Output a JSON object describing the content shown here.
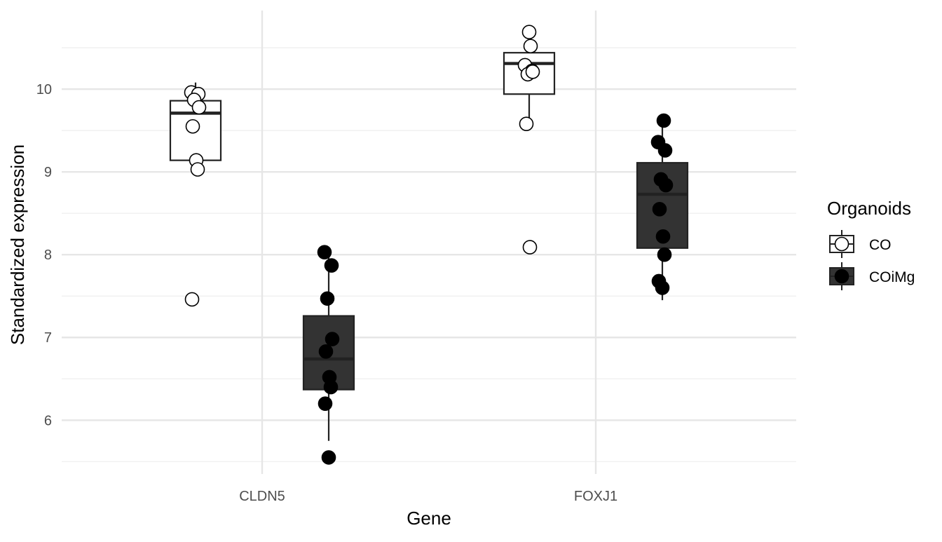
{
  "chart_data": {
    "type": "box",
    "xlabel": "Gene",
    "ylabel": "Standardized expression",
    "categories": [
      "CLDN5",
      "FOXJ1"
    ],
    "ylim": [
      5.35,
      10.95
    ],
    "yticks": [
      6,
      7,
      8,
      9,
      10
    ],
    "grid": true,
    "legend": {
      "title": "Organoids",
      "position": "right",
      "entries": [
        "CO",
        "COiMg"
      ]
    },
    "series": [
      {
        "name": "CO",
        "fill": "#ffffff",
        "stroke": "#333333",
        "point_fill": "#ffffff",
        "boxes": [
          {
            "category": "CLDN5",
            "q1": 9.14,
            "median": 9.71,
            "q3": 9.86,
            "whisker_low": 9.03,
            "whisker_high": 10.08
          },
          {
            "category": "FOXJ1",
            "q1": 9.94,
            "median": 10.31,
            "q3": 10.44,
            "whisker_low": 9.58,
            "whisker_high": 10.44
          }
        ],
        "points": [
          {
            "category": "CLDN5",
            "y": 9.96
          },
          {
            "category": "CLDN5",
            "y": 9.94
          },
          {
            "category": "CLDN5",
            "y": 9.87
          },
          {
            "category": "CLDN5",
            "y": 9.78
          },
          {
            "category": "CLDN5",
            "y": 9.55
          },
          {
            "category": "CLDN5",
            "y": 9.14
          },
          {
            "category": "CLDN5",
            "y": 9.03
          },
          {
            "category": "CLDN5",
            "y": 7.46
          },
          {
            "category": "FOXJ1",
            "y": 10.69
          },
          {
            "category": "FOXJ1",
            "y": 10.52
          },
          {
            "category": "FOXJ1",
            "y": 10.29
          },
          {
            "category": "FOXJ1",
            "y": 10.22
          },
          {
            "category": "FOXJ1",
            "y": 10.18
          },
          {
            "category": "FOXJ1",
            "y": 10.21
          },
          {
            "category": "FOXJ1",
            "y": 9.58
          },
          {
            "category": "FOXJ1",
            "y": 8.09
          }
        ]
      },
      {
        "name": "COiMg",
        "fill": "#333333",
        "stroke": "#222222",
        "point_fill": "#000000",
        "boxes": [
          {
            "category": "CLDN5",
            "q1": 6.37,
            "median": 6.74,
            "q3": 7.26,
            "whisker_low": 5.75,
            "whisker_high": 8.03
          },
          {
            "category": "FOXJ1",
            "q1": 8.08,
            "median": 8.73,
            "q3": 9.11,
            "whisker_low": 7.45,
            "whisker_high": 9.62
          }
        ],
        "points": [
          {
            "category": "CLDN5",
            "y": 8.03
          },
          {
            "category": "CLDN5",
            "y": 7.87
          },
          {
            "category": "CLDN5",
            "y": 7.47
          },
          {
            "category": "CLDN5",
            "y": 6.98
          },
          {
            "category": "CLDN5",
            "y": 6.83
          },
          {
            "category": "CLDN5",
            "y": 6.52
          },
          {
            "category": "CLDN5",
            "y": 6.4
          },
          {
            "category": "CLDN5",
            "y": 6.2
          },
          {
            "category": "CLDN5",
            "y": 5.55
          },
          {
            "category": "FOXJ1",
            "y": 9.62
          },
          {
            "category": "FOXJ1",
            "y": 9.36
          },
          {
            "category": "FOXJ1",
            "y": 9.26
          },
          {
            "category": "FOXJ1",
            "y": 8.91
          },
          {
            "category": "FOXJ1",
            "y": 8.84
          },
          {
            "category": "FOXJ1",
            "y": 8.55
          },
          {
            "category": "FOXJ1",
            "y": 8.22
          },
          {
            "category": "FOXJ1",
            "y": 8.0
          },
          {
            "category": "FOXJ1",
            "y": 7.68
          },
          {
            "category": "FOXJ1",
            "y": 7.6
          }
        ]
      }
    ]
  }
}
